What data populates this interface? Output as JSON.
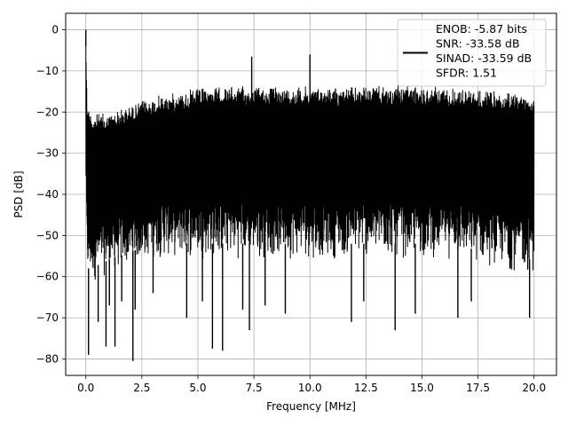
{
  "chart_data": {
    "type": "line",
    "xlabel": "Frequency [MHz]",
    "ylabel": "PSD [dB]",
    "xlim": [
      -0.9,
      21.0
    ],
    "ylim": [
      -84,
      4
    ],
    "xticks": [
      0.0,
      2.5,
      5.0,
      7.5,
      10.0,
      12.5,
      15.0,
      17.5,
      20.0
    ],
    "xtick_labels": [
      "0.0",
      "2.5",
      "5.0",
      "7.5",
      "10.0",
      "12.5",
      "15.0",
      "17.5",
      "20.0"
    ],
    "yticks": [
      0,
      -10,
      -20,
      -30,
      -40,
      -50,
      -60,
      -70,
      -80
    ],
    "ytick_labels": [
      "0",
      "−10",
      "−20",
      "−30",
      "−40",
      "−50",
      "−60",
      "−70",
      "−80"
    ],
    "grid": true,
    "legend_position": "top-right",
    "series": [
      {
        "name": "ENOB: -5.87 bits\nSNR: -33.58 dB\nSINAD: -33.59 dB\nSFDR: 1.51",
        "color": "#000000",
        "description": "dense noise spectrum",
        "envelope": {
          "x": [
            0.0,
            0.05,
            0.1,
            0.3,
            0.6,
            1.0,
            1.5,
            2.0,
            2.5,
            3.0,
            3.5,
            4.0,
            4.5,
            5.0,
            6.0,
            7.0,
            8.0,
            9.0,
            10.0,
            11.0,
            12.0,
            13.0,
            14.0,
            15.0,
            16.0,
            17.0,
            18.0,
            19.0,
            20.0
          ],
          "upper": [
            0,
            -15,
            -18,
            -20,
            -20,
            -20,
            -19,
            -18,
            -17,
            -16,
            -15.5,
            -15,
            -14.5,
            -14,
            -13.5,
            -13.5,
            -13.5,
            -13.5,
            -13.5,
            -13.5,
            -13.5,
            -13.5,
            -13.5,
            -13.5,
            -13.5,
            -14,
            -14.5,
            -15,
            -15
          ],
          "lower": [
            -40,
            -62,
            -62,
            -62,
            -61,
            -60,
            -59,
            -58,
            -57,
            -56,
            -56,
            -56,
            -56,
            -56,
            -56,
            -56,
            -56,
            -56,
            -56,
            -56,
            -56,
            -56,
            -56,
            -56,
            -56,
            -57,
            -58,
            -59,
            -60
          ]
        },
        "spurs": [
          {
            "x": 0.0,
            "y": 0.0
          },
          {
            "x": 7.4,
            "y": -6.5
          },
          {
            "x": 10.0,
            "y": -6.0
          }
        ],
        "dips": [
          {
            "x": 0.12,
            "y": -79
          },
          {
            "x": 0.55,
            "y": -71
          },
          {
            "x": 0.9,
            "y": -77
          },
          {
            "x": 1.05,
            "y": -67
          },
          {
            "x": 1.3,
            "y": -77
          },
          {
            "x": 1.6,
            "y": -66
          },
          {
            "x": 2.1,
            "y": -80.5
          },
          {
            "x": 2.2,
            "y": -68
          },
          {
            "x": 3.0,
            "y": -64
          },
          {
            "x": 4.5,
            "y": -70
          },
          {
            "x": 5.2,
            "y": -66
          },
          {
            "x": 5.65,
            "y": -77.5
          },
          {
            "x": 6.1,
            "y": -78
          },
          {
            "x": 7.0,
            "y": -68
          },
          {
            "x": 7.3,
            "y": -73
          },
          {
            "x": 8.0,
            "y": -67
          },
          {
            "x": 8.9,
            "y": -69
          },
          {
            "x": 11.85,
            "y": -71
          },
          {
            "x": 12.4,
            "y": -66
          },
          {
            "x": 13.8,
            "y": -73
          },
          {
            "x": 14.7,
            "y": -69
          },
          {
            "x": 16.6,
            "y": -70
          },
          {
            "x": 17.2,
            "y": -66
          },
          {
            "x": 19.8,
            "y": -70
          }
        ]
      }
    ]
  }
}
